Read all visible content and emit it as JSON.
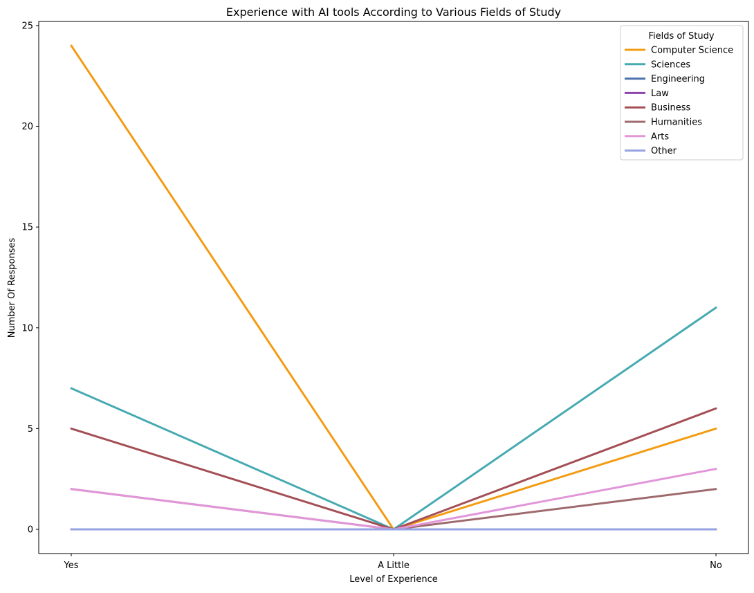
{
  "chart_data": {
    "type": "line",
    "title": "Experience with AI tools According to Various Fields of Study",
    "xlabel": "Level of Experience",
    "ylabel": "Number Of Responses",
    "categories": [
      "Yes",
      "A Little",
      "No"
    ],
    "ylim": [
      -1.2,
      25.2
    ],
    "yticks": [
      0,
      5,
      10,
      15,
      20,
      25
    ],
    "grid": false,
    "legend": {
      "title": "Fields of Study",
      "placement": "top-right"
    },
    "series": [
      {
        "name": "Computer Science",
        "values": [
          24,
          0,
          5
        ],
        "color": "#f39c12"
      },
      {
        "name": "Sciences",
        "values": [
          7,
          0,
          11
        ],
        "color": "#47aab2"
      },
      {
        "name": "Engineering",
        "values": [
          0,
          0,
          0
        ],
        "color": "#4a72ad"
      },
      {
        "name": "Law",
        "values": [
          0,
          0,
          0
        ],
        "color": "#8e44ad"
      },
      {
        "name": "Business",
        "values": [
          5,
          0,
          6
        ],
        "color": "#a34f55"
      },
      {
        "name": "Humanities",
        "values": [
          2,
          0,
          2
        ],
        "color": "#9e6a6e"
      },
      {
        "name": "Arts",
        "values": [
          2,
          0,
          3
        ],
        "color": "#e196d9"
      },
      {
        "name": "Other",
        "values": [
          0,
          0,
          0
        ],
        "color": "#96a3e3"
      }
    ]
  }
}
